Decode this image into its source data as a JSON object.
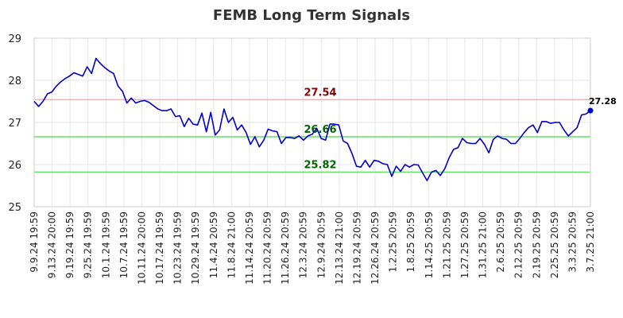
{
  "chart_data": {
    "type": "line",
    "title": "FEMB Long Term Signals",
    "ylim": [
      25,
      29
    ],
    "y_ticks": [
      "25",
      "26",
      "27",
      "28",
      "29"
    ],
    "x_tick_labels": [
      "9.9.24 19:59",
      "9.13.24 20:00",
      "9.19.24 19:59",
      "9.25.24 19:59",
      "10.1.24 19:59",
      "10.7.24 19:59",
      "10.11.24 20:00",
      "10.17.24 19:59",
      "10.23.24 19:59",
      "10.29.24 19:59",
      "11.4.24 20:59",
      "11.8.24 21:00",
      "11.14.24 20:59",
      "11.20.24 20:59",
      "11.26.24 20:59",
      "12.3.24 20:59",
      "12.9.24 20:59",
      "12.13.24 21:00",
      "12.19.24 20:59",
      "12.26.24 20:59",
      "1.2.25 20:59",
      "1.8.25 20:59",
      "1.14.25 20:59",
      "1.21.25 20:59",
      "1.27.25 20:59",
      "1.31.25 21:00",
      "2.6.25 20:59",
      "2.12.25 20:59",
      "2.19.25 20:59",
      "2.25.25 20:59",
      "3.3.25 20:59",
      "3.7.25 21:00"
    ],
    "grid": true,
    "colors": {
      "line": "#0000cc",
      "resistance": "#ffaaaa",
      "support": "#66dd66",
      "resistance_label": "#8b0000",
      "support_label": "#006400"
    },
    "levels": [
      {
        "value": 27.54,
        "label": "27.54",
        "kind": "resistance"
      },
      {
        "value": 26.66,
        "label": "26.66",
        "kind": "support"
      },
      {
        "value": 25.82,
        "label": "25.82",
        "kind": "support"
      }
    ],
    "last_value_label": "27.28",
    "series": [
      {
        "values": [
          27.5,
          27.38,
          27.5,
          27.68,
          27.72,
          27.86,
          27.96,
          28.04,
          28.1,
          28.18,
          28.14,
          28.1,
          28.32,
          28.16,
          28.52,
          28.4,
          28.3,
          28.22,
          28.16,
          27.86,
          27.74,
          27.46,
          27.58,
          27.46,
          27.5,
          27.52,
          27.48,
          27.4,
          27.32,
          27.28,
          27.28,
          27.32,
          27.14,
          27.16,
          26.9,
          27.1,
          26.96,
          26.94,
          27.22,
          26.78,
          27.24,
          26.7,
          26.82,
          27.32,
          27.0,
          27.12,
          26.82,
          26.94,
          26.76,
          26.48,
          26.66,
          26.42,
          26.58,
          26.84,
          26.8,
          26.78,
          26.5,
          26.64,
          26.64,
          26.62,
          26.68,
          26.58,
          26.68,
          26.72,
          26.86,
          26.62,
          26.58,
          26.96,
          26.96,
          26.94,
          26.56,
          26.5,
          26.26,
          25.96,
          25.94,
          26.1,
          25.94,
          26.1,
          26.08,
          26.02,
          26.0,
          25.72,
          25.96,
          25.84,
          26.0,
          25.94,
          26.0,
          25.99,
          25.8,
          25.62,
          25.82,
          25.86,
          25.74,
          25.9,
          26.16,
          26.36,
          26.4,
          26.62,
          26.52,
          26.5,
          26.5,
          26.62,
          26.48,
          26.28,
          26.6,
          26.68,
          26.62,
          26.6,
          26.5,
          26.5,
          26.62,
          26.76,
          26.88,
          26.94,
          26.76,
          27.02,
          27.02,
          26.98,
          27.0,
          27.0,
          26.82,
          26.68,
          26.78,
          26.88,
          27.18,
          27.2,
          27.28
        ]
      }
    ]
  }
}
